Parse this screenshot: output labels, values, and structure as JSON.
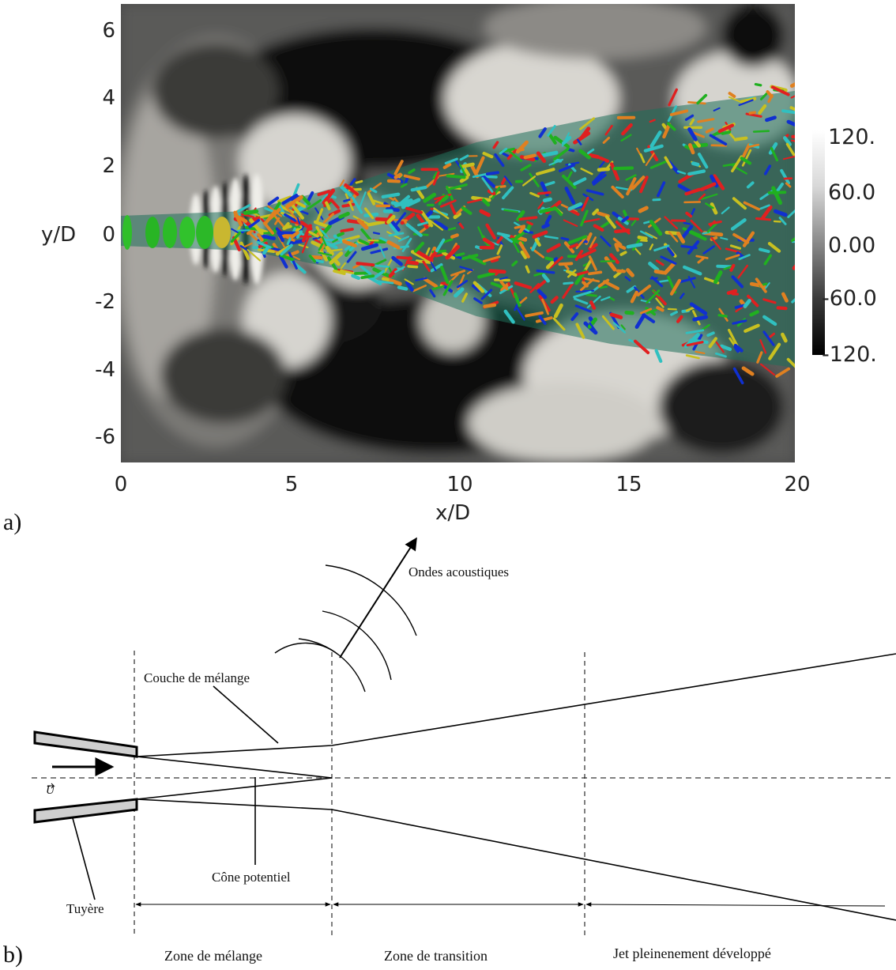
{
  "panel_a": {
    "letter": "a)",
    "ylabel": "y/D",
    "xlabel": "x/D",
    "yticks": [
      "6",
      "4",
      "2",
      "0",
      "-2",
      "-4",
      "-6"
    ],
    "xticks": [
      "0",
      "5",
      "10",
      "15",
      "20"
    ],
    "colorbar_ticks": [
      "120.",
      "60.0",
      "0.00",
      "-60.0",
      "-120."
    ],
    "colormap": [
      "#000000",
      "#ffffff"
    ],
    "iso_colors": [
      "#e02020",
      "#1030d0",
      "#20b020",
      "#30c0c0",
      "#c8c020",
      "#e08020"
    ]
  },
  "panel_b": {
    "letter": "b)",
    "labels": {
      "acoustic_waves": "Ondes acoustiques",
      "mixing_layer": "Couche de mélange",
      "velocity": "U",
      "potential_core": "Cône potentiel",
      "nozzle": "Tuyère"
    },
    "zones": {
      "mixing": "Zone de mélange",
      "transition": "Zone de transition",
      "developed": "Jet pleinenement développé"
    }
  }
}
